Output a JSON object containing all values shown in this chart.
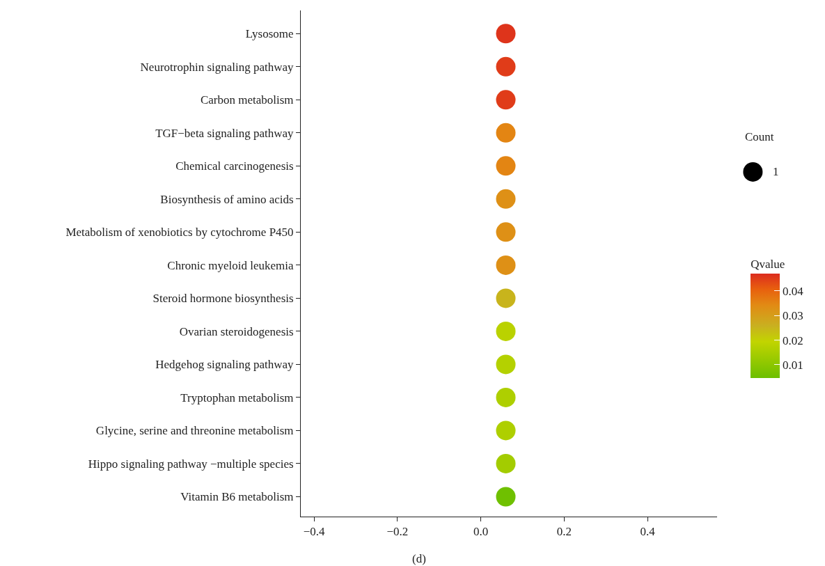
{
  "chart_data": {
    "type": "scatter",
    "categories": [
      "Lysosome",
      "Neurotrophin signaling pathway",
      "Carbon metabolism",
      "TGF−beta signaling pathway",
      "Chemical carcinogenesis",
      "Biosynthesis of amino acids",
      "Metabolism of xenobiotics by cytochrome P450",
      "Chronic myeloid leukemia",
      "Steroid hormone biosynthesis",
      "Ovarian steroidogenesis",
      "Hedgehog signaling pathway",
      "Tryptophan metabolism",
      "Glycine, serine and threonine metabolism",
      "Hippo signaling pathway −multiple species",
      "Vitamin B6 metabolism"
    ],
    "values": [
      0.06,
      0.06,
      0.06,
      0.06,
      0.06,
      0.06,
      0.06,
      0.06,
      0.06,
      0.06,
      0.06,
      0.06,
      0.06,
      0.06,
      0.06
    ],
    "orientation": "horizontal",
    "cvalues": [
      0.046,
      0.045,
      0.045,
      0.035,
      0.035,
      0.033,
      0.033,
      0.033,
      0.025,
      0.018,
      0.017,
      0.016,
      0.016,
      0.014,
      0.005
    ],
    "sizes": [
      1,
      1,
      1,
      1,
      1,
      1,
      1,
      1,
      1,
      1,
      1,
      1,
      1,
      1,
      1
    ],
    "size_legend": [
      1
    ],
    "legend_title": "Count",
    "clabel": "Qvalue",
    "clim": [
      0.0045,
      0.047
    ],
    "cticks": [
      0.01,
      0.02,
      0.03,
      0.04
    ],
    "xlim": [
      -0.432,
      0.567
    ],
    "xticks": [
      {
        "value": -0.4,
        "label": "−0.4"
      },
      {
        "value": -0.2,
        "label": "−0.2"
      },
      {
        "value": 0,
        "label": "0.0"
      },
      0.2,
      0.4
    ],
    "grid": false,
    "marker": "circle",
    "annotations": [
      "(d)"
    ]
  }
}
